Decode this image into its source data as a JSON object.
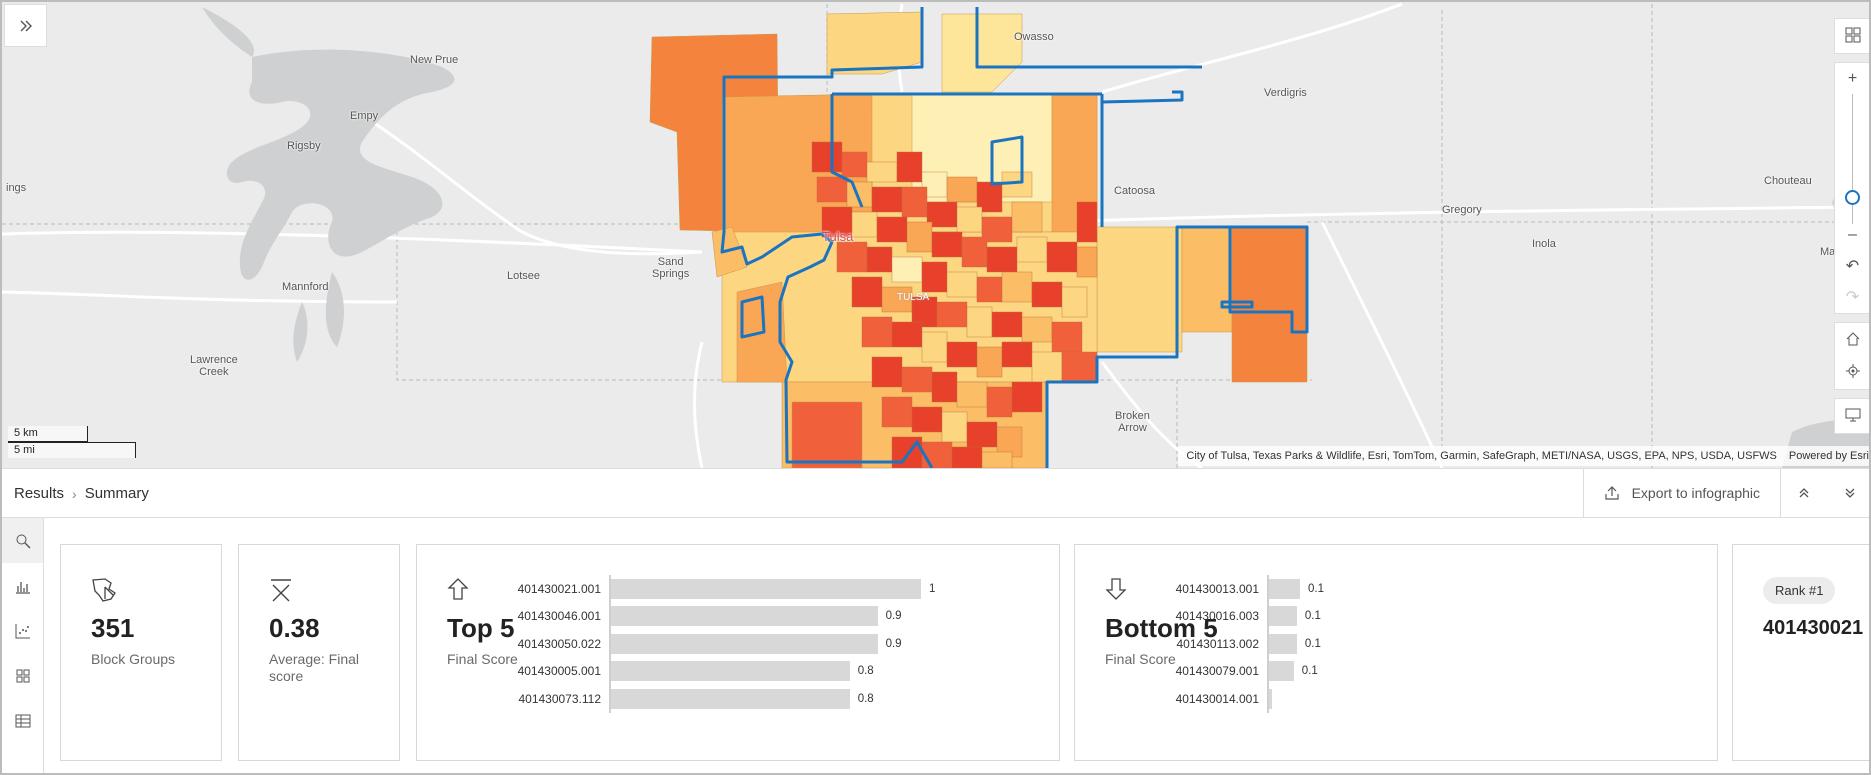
{
  "map": {
    "places": [
      {
        "id": "owasso",
        "name": "Owasso"
      },
      {
        "id": "new-prue",
        "name": "New Prue"
      },
      {
        "id": "empy",
        "name": "Empy"
      },
      {
        "id": "verdigris",
        "name": "Verdigris"
      },
      {
        "id": "rigsby",
        "name": "Rigsby"
      },
      {
        "id": "ings",
        "name": "ings"
      },
      {
        "id": "catoosa",
        "name": "Catoosa"
      },
      {
        "id": "chouteau",
        "name": "Chouteau"
      },
      {
        "id": "gregory",
        "name": "Gregory"
      },
      {
        "id": "sand-springs",
        "name": "Sand\nSprings"
      },
      {
        "id": "lotsee",
        "name": "Lotsee"
      },
      {
        "id": "tulsa",
        "name": "Tulsa"
      },
      {
        "id": "tulsa-county",
        "name": "TULSA"
      },
      {
        "id": "inola",
        "name": "Inola"
      },
      {
        "id": "mazie",
        "name": "Mazie"
      },
      {
        "id": "mannford",
        "name": "Mannford"
      },
      {
        "id": "lawrence-creek",
        "name": "Lawrence\nCreek"
      },
      {
        "id": "broken-arrow",
        "name": "Broken\nArrow"
      }
    ],
    "scale_km": "5 km",
    "scale_mi": "5 mi",
    "attribution": "City of Tulsa, Texas Parks & Wildlife, Esri, TomTom, Garmin, SafeGraph, METI/NASA, USGS, EPA, NPS, USDA, USFWS",
    "powered_by": "Powered by Esri",
    "colors": {
      "low": "#fde59a",
      "mid": "#f9a74f",
      "high": "#e8412b",
      "boundary": "#1b74c0"
    }
  },
  "header": {
    "crumb_root": "Results",
    "crumb_current": "Summary",
    "export_label": "Export to infographic"
  },
  "cards": {
    "count": {
      "value": "351",
      "label": "Block Groups"
    },
    "average": {
      "value": "0.38",
      "label": "Average: Final score"
    },
    "top5": {
      "title": "Top 5",
      "label": "Final Score",
      "items": [
        {
          "id": "401430021.001",
          "value": 1,
          "text": "1"
        },
        {
          "id": "401430046.001",
          "value": 0.86,
          "text": "0.9"
        },
        {
          "id": "401430050.022",
          "value": 0.86,
          "text": "0.9"
        },
        {
          "id": "401430005.001",
          "value": 0.77,
          "text": "0.8"
        },
        {
          "id": "401430073.112",
          "value": 0.77,
          "text": "0.8"
        }
      ]
    },
    "bottom5": {
      "title": "Bottom 5",
      "label": "Final Score",
      "items": [
        {
          "id": "401430013.001",
          "value": 0.1,
          "text": "0.1"
        },
        {
          "id": "401430016.003",
          "value": 0.09,
          "text": "0.1"
        },
        {
          "id": "401430113.002",
          "value": 0.09,
          "text": "0.1"
        },
        {
          "id": "401430079.001",
          "value": 0.08,
          "text": "0.1"
        },
        {
          "id": "401430014.001",
          "value": 0.01,
          "text": ""
        }
      ]
    },
    "rank": {
      "badge": "Rank #1",
      "value": "401430021"
    }
  }
}
